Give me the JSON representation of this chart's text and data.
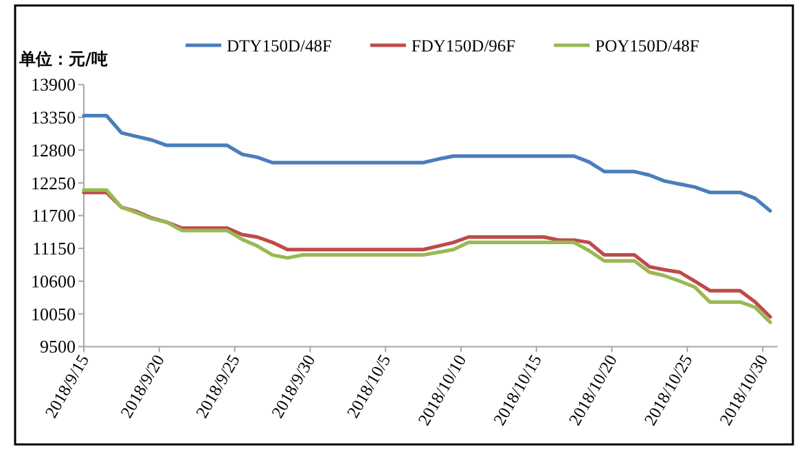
{
  "chart_data": {
    "type": "line",
    "ylabel": "单位：元/吨",
    "legend": "top",
    "marker": "none",
    "line_style": "solid",
    "grid": false,
    "xlim": [
      "2018-09-15",
      "2018-10-31"
    ],
    "xticks": [
      {
        "value": "2018-09-15",
        "label": "2018/9/15"
      },
      {
        "value": "2018-09-20",
        "label": "2018/9/20"
      },
      {
        "value": "2018-09-25",
        "label": "2018/9/25"
      },
      {
        "value": "2018-09-30",
        "label": "2018/9/30"
      },
      {
        "value": "2018-10-05",
        "label": "2018/10/5"
      },
      {
        "value": "2018-10-10",
        "label": "2018/10/10"
      },
      {
        "value": "2018-10-15",
        "label": "2018/10/15"
      },
      {
        "value": "2018-10-20",
        "label": "2018/10/20"
      },
      {
        "value": "2018-10-25",
        "label": "2018/10/25"
      },
      {
        "value": "2018-10-30",
        "label": "2018/10/30"
      }
    ],
    "ylim": [
      9500,
      13900
    ],
    "yticks": [
      9500,
      10050,
      10600,
      11150,
      11700,
      12250,
      12800,
      13350,
      13900
    ],
    "series": [
      {
        "name": "DTY150D/48F",
        "color": "#4a7ebb",
        "x": [
          "2018-09-15",
          "2018-09-16T12:00",
          "2018-09-17T12:00",
          "2018-09-18T12:00",
          "2018-09-19T12:00",
          "2018-09-20T12:00",
          "2018-09-24T12:00",
          "2018-09-25T12:00",
          "2018-09-26T12:00",
          "2018-09-27T12:00",
          "2018-10-07T12:00",
          "2018-10-08T12:00",
          "2018-10-09T12:00",
          "2018-10-17T12:00",
          "2018-10-18T12:00",
          "2018-10-19T12:00",
          "2018-10-21T12:00",
          "2018-10-22T12:00",
          "2018-10-23T12:00",
          "2018-10-24T12:00",
          "2018-10-25T12:00",
          "2018-10-26T12:00",
          "2018-10-28T12:00",
          "2018-10-29T12:00",
          "2018-10-30T12:00"
        ],
        "values": [
          13380,
          13380,
          13090,
          13030,
          12970,
          12880,
          12880,
          12730,
          12680,
          12590,
          12590,
          12650,
          12700,
          12700,
          12600,
          12440,
          12440,
          12380,
          12280,
          12230,
          12180,
          12090,
          12090,
          11990,
          11780
        ]
      },
      {
        "name": "FDY150D/96F",
        "color": "#be4b48",
        "x": [
          "2018-09-15",
          "2018-09-16T12:00",
          "2018-09-17T12:00",
          "2018-09-18T12:00",
          "2018-09-19T12:00",
          "2018-09-20T12:00",
          "2018-09-21T12:00",
          "2018-09-24T12:00",
          "2018-09-25T12:00",
          "2018-09-26T12:00",
          "2018-09-27T12:00",
          "2018-09-28T12:00",
          "2018-10-07T12:00",
          "2018-10-08T12:00",
          "2018-10-09T12:00",
          "2018-10-10T12:00",
          "2018-10-15T12:00",
          "2018-10-16T12:00",
          "2018-10-17T12:00",
          "2018-10-18T12:00",
          "2018-10-19T12:00",
          "2018-10-21T12:00",
          "2018-10-22T12:00",
          "2018-10-23T12:00",
          "2018-10-24T12:00",
          "2018-10-25T12:00",
          "2018-10-26T12:00",
          "2018-10-28T12:00",
          "2018-10-29T12:00",
          "2018-10-30T12:00"
        ],
        "values": [
          12090,
          12090,
          11840,
          11770,
          11660,
          11590,
          11490,
          11490,
          11380,
          11340,
          11250,
          11130,
          11130,
          11190,
          11250,
          11340,
          11340,
          11290,
          11290,
          11250,
          11040,
          11040,
          10840,
          10790,
          10750,
          10600,
          10440,
          10440,
          10250,
          10000
        ]
      },
      {
        "name": "POY150D/48F",
        "color": "#98b954",
        "x": [
          "2018-09-15",
          "2018-09-16T12:00",
          "2018-09-17T12:00",
          "2018-09-18T12:00",
          "2018-09-19T12:00",
          "2018-09-20T12:00",
          "2018-09-21T12:00",
          "2018-09-24T12:00",
          "2018-09-25T12:00",
          "2018-09-26T12:00",
          "2018-09-27T12:00",
          "2018-09-28T12:00",
          "2018-09-29T12:00",
          "2018-10-07T12:00",
          "2018-10-09T12:00",
          "2018-10-10T12:00",
          "2018-10-17T12:00",
          "2018-10-18T12:00",
          "2018-10-19T12:00",
          "2018-10-21T12:00",
          "2018-10-22T12:00",
          "2018-10-23T12:00",
          "2018-10-24T12:00",
          "2018-10-25T12:00",
          "2018-10-26T12:00",
          "2018-10-28T12:00",
          "2018-10-29T12:00",
          "2018-10-30T12:00"
        ],
        "values": [
          12130,
          12130,
          11840,
          11750,
          11650,
          11590,
          11450,
          11450,
          11300,
          11190,
          11040,
          10990,
          11040,
          11040,
          11130,
          11250,
          11250,
          11110,
          10940,
          10940,
          10750,
          10690,
          10600,
          10500,
          10250,
          10250,
          10160,
          9910
        ]
      }
    ]
  }
}
